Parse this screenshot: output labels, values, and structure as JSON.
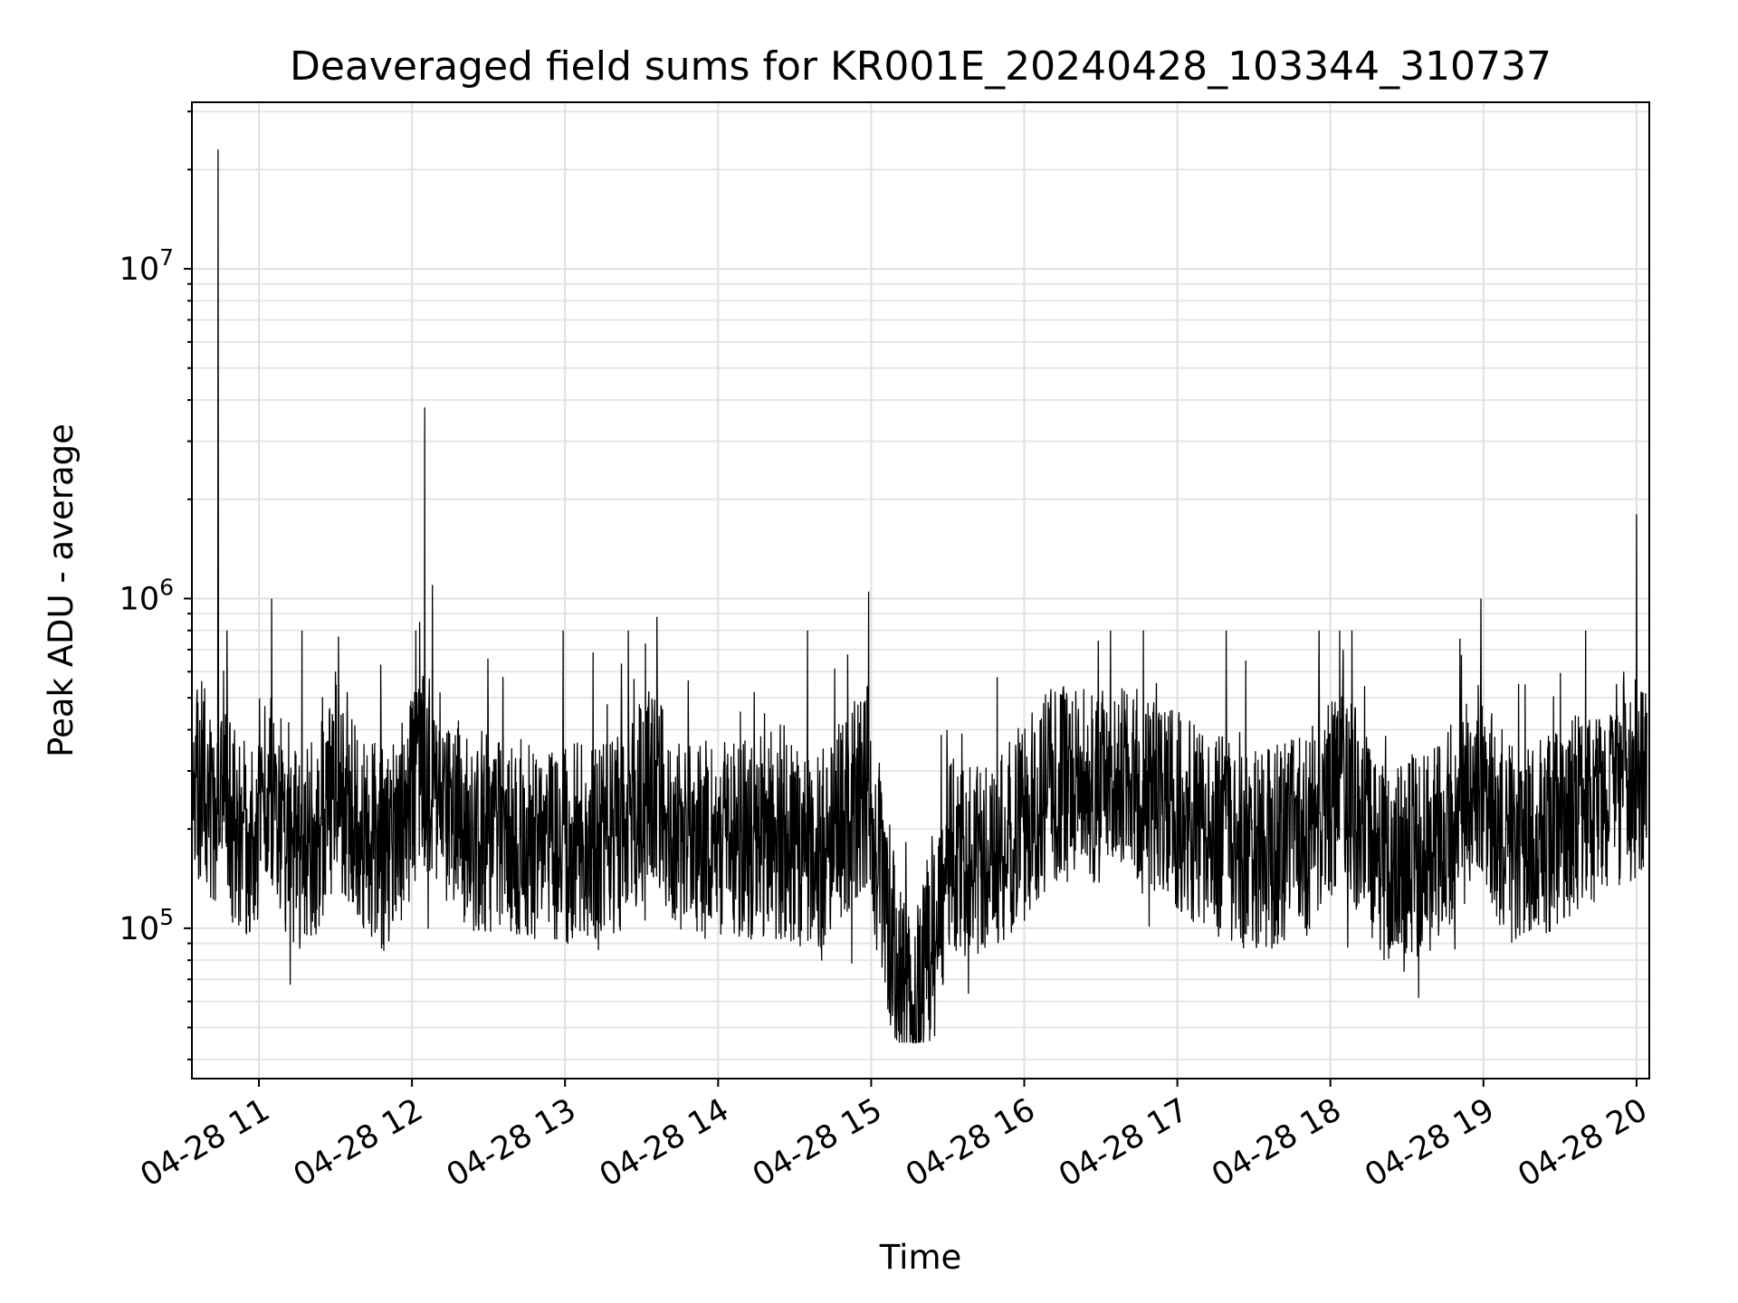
{
  "chart_data": {
    "type": "line",
    "title": "Deaveraged field sums for KR001E_20240428_103344_310737",
    "xlabel": "Time",
    "ylabel": "Peak ADU - average",
    "xscale": "time",
    "yscale": "log",
    "grid": true,
    "xlim": [
      "2024-04-28 10:33:44",
      "2024-04-28 20:05:00"
    ],
    "ylim": [
      35000,
      32000000
    ],
    "x_ticks": [
      "04-28 11",
      "04-28 12",
      "04-28 13",
      "04-28 14",
      "04-28 15",
      "04-28 16",
      "04-28 17",
      "04-28 18",
      "04-28 19",
      "04-28 20"
    ],
    "y_ticks": [
      {
        "value": 100000,
        "label": "10",
        "exp": "5"
      },
      {
        "value": 1000000,
        "label": "10",
        "exp": "6"
      },
      {
        "value": 10000000,
        "label": "10",
        "exp": "7"
      }
    ],
    "series": [
      {
        "color": "#000000",
        "x": [
          "2024-04-28 10:34",
          "2024-04-28 10:38",
          "2024-04-28 10:42",
          "2024-04-28 10:44",
          "2024-04-28 10:46",
          "2024-04-28 10:50",
          "2024-04-28 10:53",
          "2024-04-28 10:58",
          "2024-04-28 11:05",
          "2024-04-28 11:10",
          "2024-04-28 11:13",
          "2024-04-28 11:20",
          "2024-04-28 11:30",
          "2024-04-28 11:40",
          "2024-04-28 11:50",
          "2024-04-28 12:03",
          "2024-04-28 12:05",
          "2024-04-28 12:08",
          "2024-04-28 12:20",
          "2024-04-28 12:40",
          "2024-04-28 13:00",
          "2024-04-28 13:20",
          "2024-04-28 13:36",
          "2024-04-28 13:40",
          "2024-04-28 14:00",
          "2024-04-28 14:20",
          "2024-04-28 14:40",
          "2024-04-28 14:59",
          "2024-04-28 15:02",
          "2024-04-28 15:16",
          "2024-04-28 15:30",
          "2024-04-28 15:50",
          "2024-04-28 16:10",
          "2024-04-28 16:25",
          "2024-04-28 16:35",
          "2024-04-28 16:50",
          "2024-04-28 17:10",
          "2024-04-28 17:30",
          "2024-04-28 17:50",
          "2024-04-28 18:05",
          "2024-04-28 18:20",
          "2024-04-28 18:40",
          "2024-04-28 18:59",
          "2024-04-28 19:10",
          "2024-04-28 19:30",
          "2024-04-28 19:45",
          "2024-04-28 19:55",
          "2024-04-28 20:00",
          "2024-04-28 20:04"
        ],
        "y": [
          300000,
          400000,
          220000,
          23000000,
          250000,
          200000,
          180000,
          190000,
          1000000,
          200000,
          180000,
          170000,
          600000,
          190000,
          170000,
          850000,
          3800000,
          1100000,
          200000,
          190000,
          180000,
          190000,
          880000,
          200000,
          180000,
          190000,
          170000,
          1050000,
          170000,
          48000,
          160000,
          170000,
          270000,
          300000,
          280000,
          250000,
          200000,
          170000,
          190000,
          700000,
          160000,
          170000,
          1000000,
          180000,
          200000,
          250000,
          600000,
          1800000,
          450000
        ]
      }
    ]
  }
}
